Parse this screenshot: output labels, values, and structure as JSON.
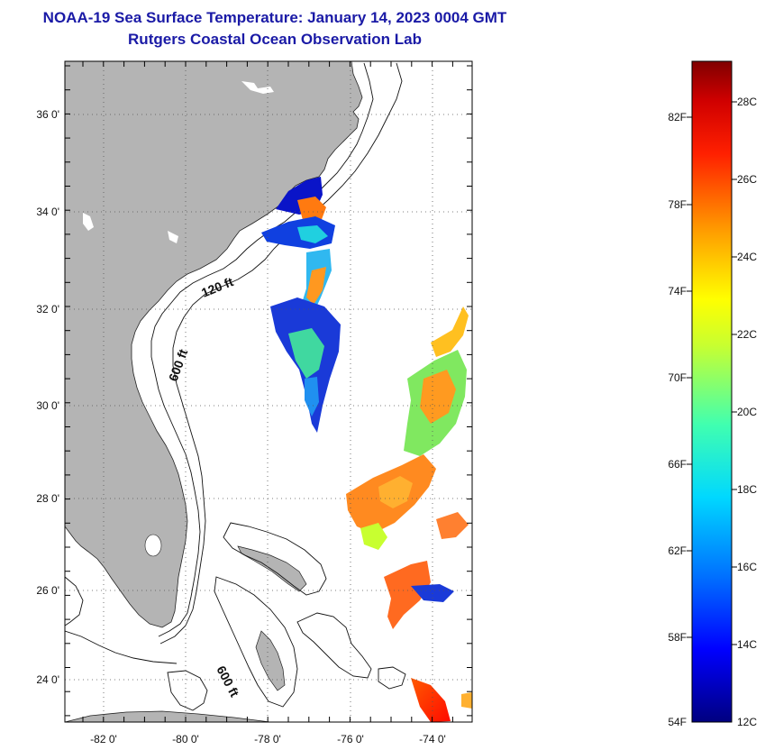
{
  "title": {
    "line1": "NOAA-19 Sea Surface Temperature:  January 14, 2023 0004 GMT",
    "line2": "Rutgers Coastal Ocean Observation Lab"
  },
  "map": {
    "lat_labels": [
      "36 0'",
      "34 0'",
      "32 0'",
      "30 0'",
      "28 0'",
      "26 0'",
      "24 0'"
    ],
    "lon_labels": [
      "-82 0'",
      "-80 0'",
      "-78 0'",
      "-76 0'",
      "-74 0'"
    ],
    "contour_labels": [
      "120 ft",
      "600 ft",
      "600 ft"
    ],
    "colors": {
      "land": "#b4b4b4",
      "ocean": "#ffffff"
    }
  },
  "colorbar": {
    "fahrenheit_labels": [
      "82F",
      "78F",
      "74F",
      "70F",
      "66F",
      "62F",
      "58F",
      "54F"
    ],
    "celsius_labels": [
      "28C",
      "26C",
      "24C",
      "22C",
      "20C",
      "18C",
      "16C",
      "14C",
      "12C"
    ]
  }
}
